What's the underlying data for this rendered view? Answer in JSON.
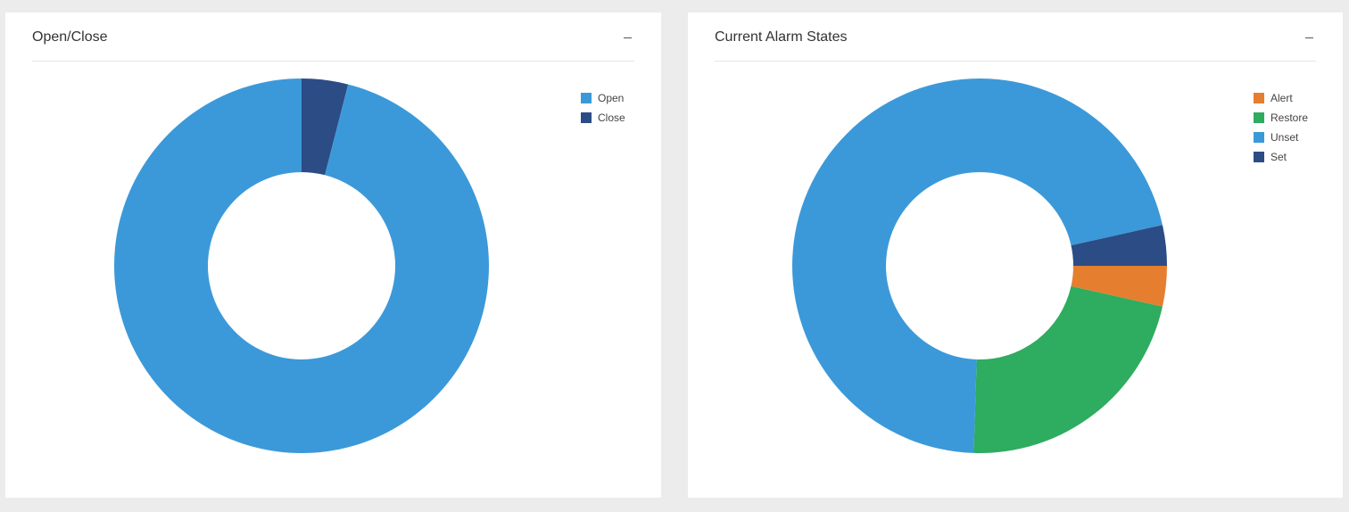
{
  "panels": [
    {
      "title": "Open/Close",
      "collapse_label": "–",
      "chart_data": {
        "type": "pie",
        "donut": true,
        "categories": [
          "Open",
          "Close"
        ],
        "values": [
          96,
          4
        ],
        "colors": [
          "#3b99d9",
          "#2c4c86"
        ],
        "legend_position": "top-right"
      }
    },
    {
      "title": "Current Alarm States",
      "collapse_label": "–",
      "chart_data": {
        "type": "pie",
        "donut": true,
        "categories": [
          "Alert",
          "Restore",
          "Unset",
          "Set"
        ],
        "values": [
          3.5,
          22,
          71,
          3.5
        ],
        "colors": [
          "#e67e30",
          "#2eac5f",
          "#3b99d9",
          "#2c4c86"
        ],
        "legend_position": "top-right"
      }
    }
  ]
}
